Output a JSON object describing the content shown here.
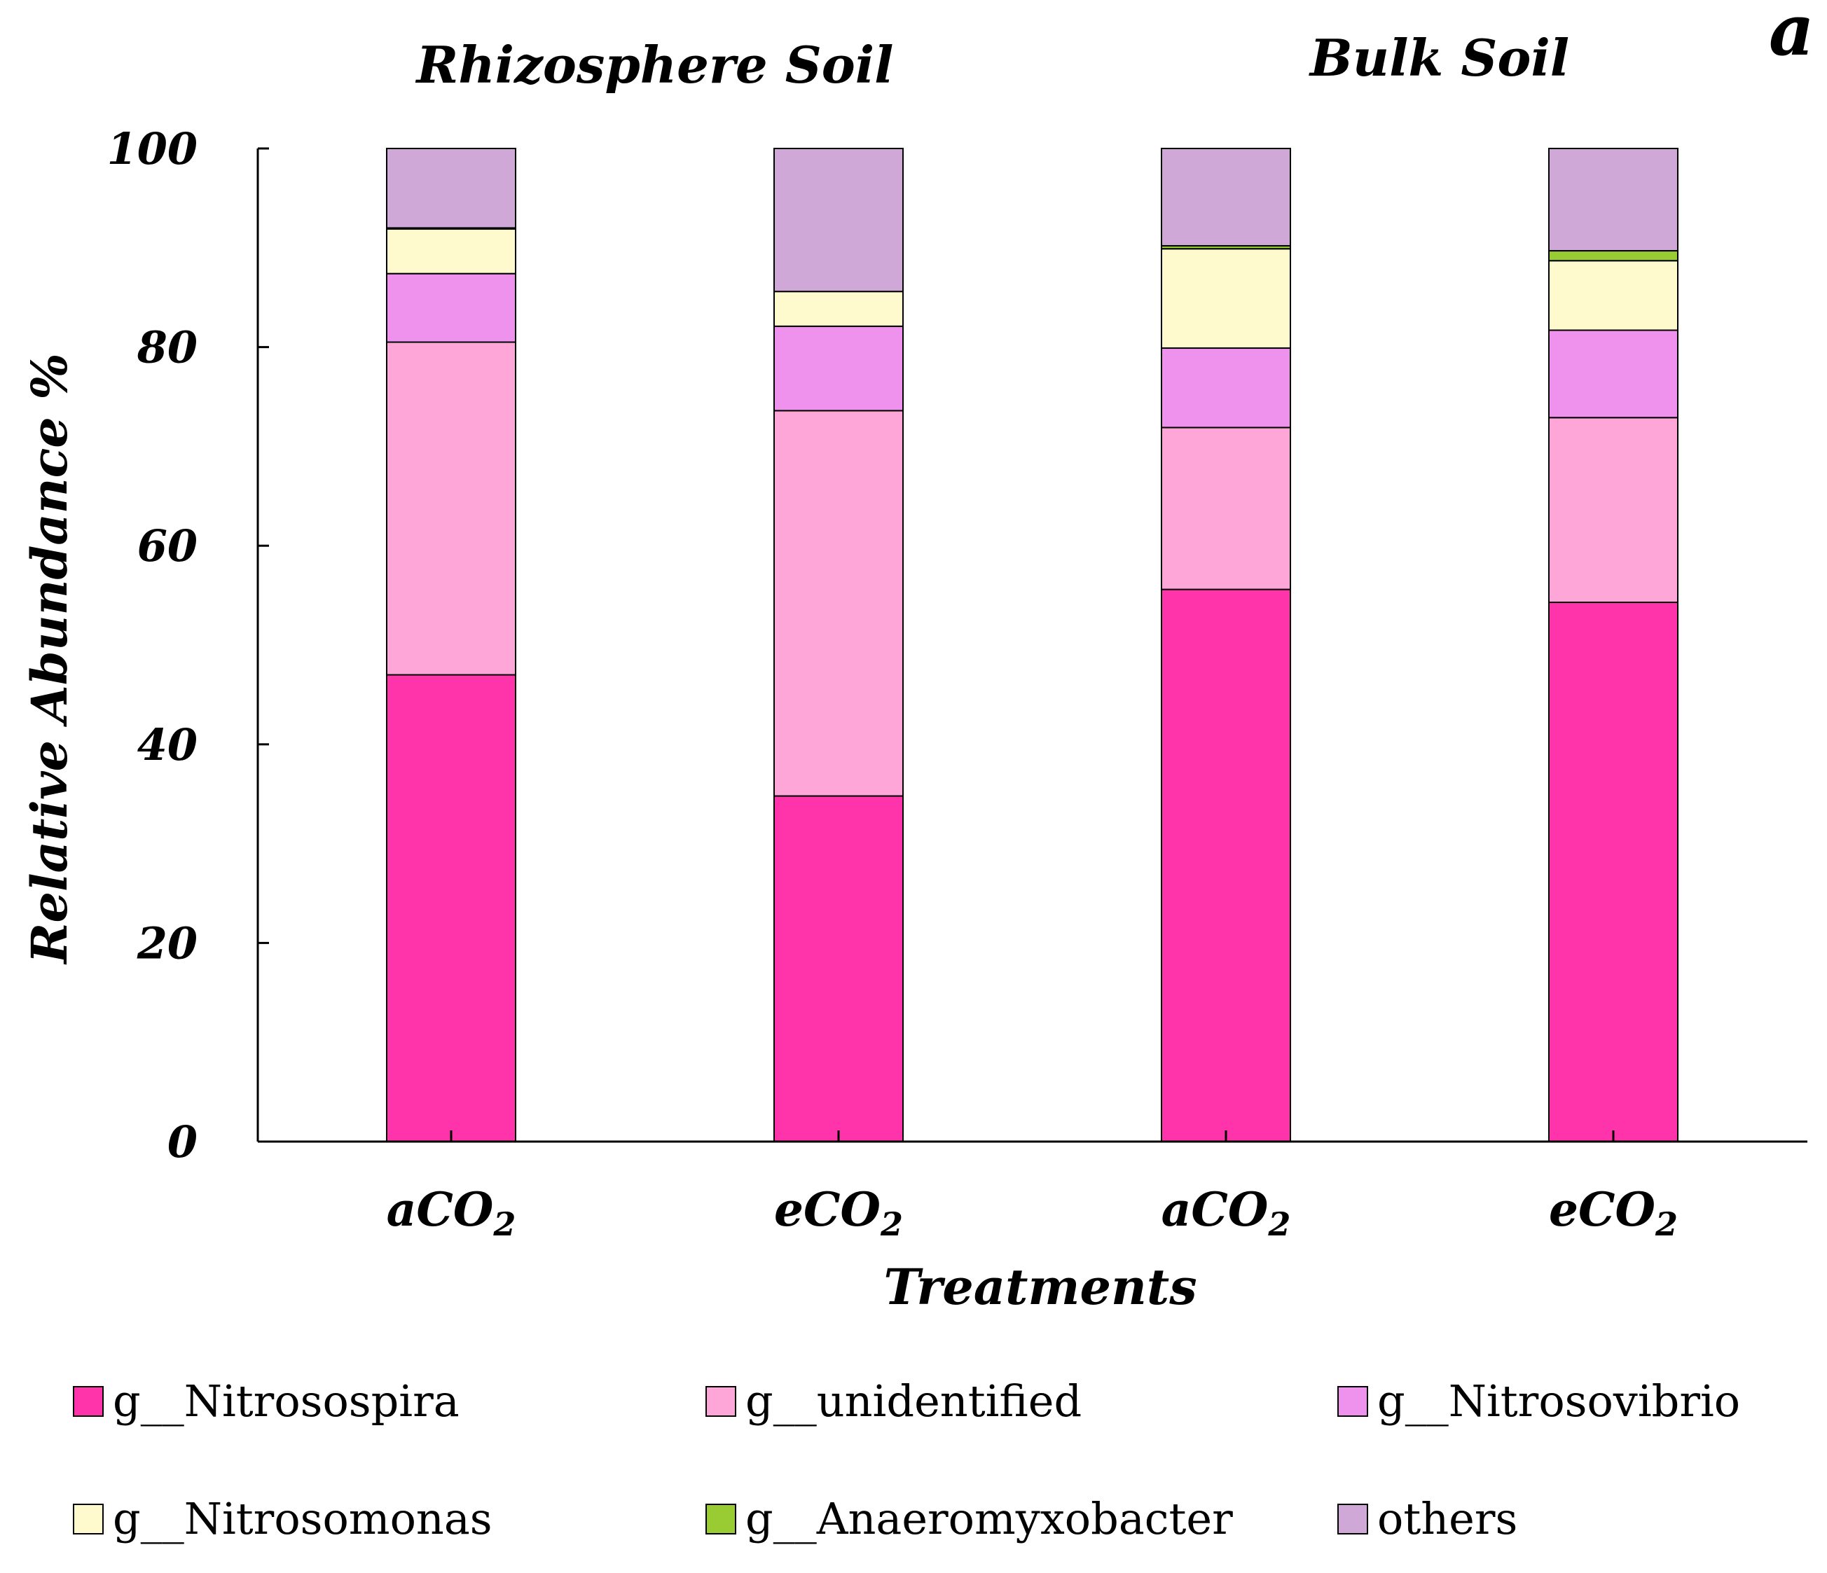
{
  "chart_data": {
    "type": "stacked-bar",
    "panel_label": "a",
    "group_titles": [
      "Rhizosphere  Soil",
      "Bulk  Soil"
    ],
    "ylabel": "Relative Abundance %",
    "xlabel": "Treatments",
    "ylim": [
      0,
      100
    ],
    "yticks": [
      0,
      20,
      40,
      60,
      80,
      100
    ],
    "categories": [
      {
        "base": "aCO",
        "sub": "2"
      },
      {
        "base": "eCO",
        "sub": "2"
      },
      {
        "base": "aCO",
        "sub": "2"
      },
      {
        "base": "eCO",
        "sub": "2"
      }
    ],
    "series": [
      {
        "name": "g__Nitrosospira",
        "color": "#FF33AA",
        "values": [
          47.0,
          34.8,
          55.6,
          54.3
        ]
      },
      {
        "name": "g__unidentified",
        "color": "#FFA6D9",
        "values": [
          33.5,
          38.8,
          16.3,
          18.6
        ]
      },
      {
        "name": "g__Nitrosovibrio",
        "color": "#EE92EE",
        "values": [
          6.9,
          8.5,
          8.0,
          8.8
        ]
      },
      {
        "name": "g__Nitrosomonas",
        "color": "#FFFACD",
        "values": [
          4.5,
          3.5,
          10.0,
          7.0
        ]
      },
      {
        "name": "g__Anaeromyxobacter",
        "color": "#99CC33",
        "values": [
          0.1,
          0.0,
          0.3,
          1.0
        ]
      },
      {
        "name": "others",
        "color": "#CFA8D8",
        "values": [
          8.0,
          14.4,
          9.8,
          10.3
        ]
      }
    ],
    "legend_position": "bottom"
  }
}
